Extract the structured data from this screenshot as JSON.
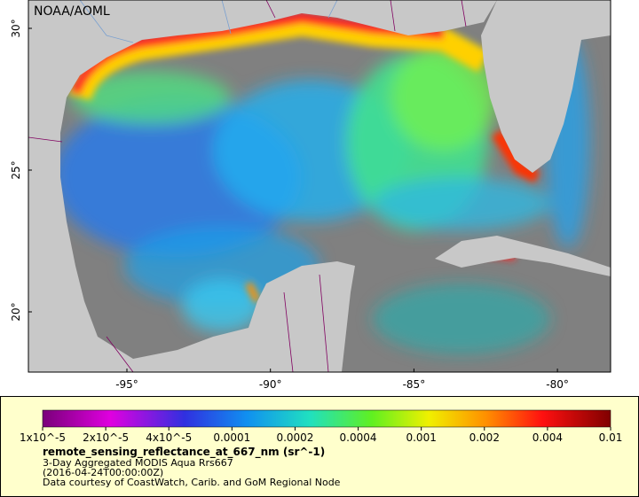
{
  "map": {
    "credit": "NOAA/AOML",
    "lat_ticks": [
      "30°",
      "25°",
      "20°"
    ],
    "lon_ticks": [
      "-95°",
      "-90°",
      "-85°",
      "-80°"
    ]
  },
  "legend": {
    "scale_labels": [
      "1x10^-5",
      "2x10^-5",
      "4x10^-5",
      "0.0001",
      "0.0002",
      "0.0004",
      "0.001",
      "0.002",
      "0.004",
      "0.01"
    ],
    "variable": "remote_sensing_reflectance_at_667_nm (sr^-1)",
    "lines": [
      "3-Day Aggregated MODIS Aqua Rrs667",
      "(2016-04-24T00:00:00Z)",
      "Data courtesy of CoastWatch, Carib. and GoM Regional Node"
    ]
  }
}
